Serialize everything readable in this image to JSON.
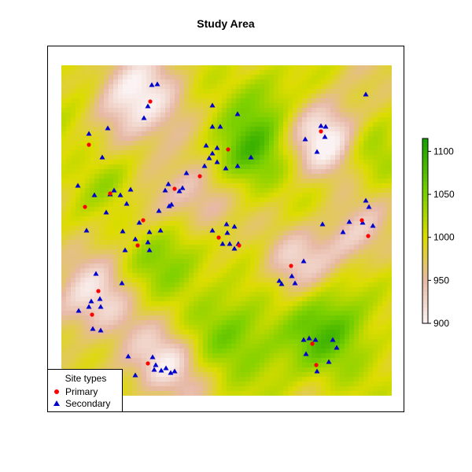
{
  "title": "Study Area",
  "colors": {
    "primary": "#ff0000",
    "secondary": "#0000cd",
    "frame": "#000000"
  },
  "colorscale": {
    "min": 900,
    "max": 1115,
    "ticks": [
      900,
      950,
      1000,
      1050,
      1100
    ],
    "stops": [
      {
        "value": 900,
        "color": "#fbf3f3"
      },
      {
        "value": 950,
        "color": "#e7b9a6"
      },
      {
        "value": 1000,
        "color": "#dcdc00"
      },
      {
        "value": 1050,
        "color": "#7cd000"
      },
      {
        "value": 1115,
        "color": "#14a000"
      }
    ]
  },
  "legend": {
    "title": "Site types",
    "items": [
      {
        "label": "Primary",
        "symbol": "circle",
        "color": "#ff0000"
      },
      {
        "label": "Secondary",
        "symbol": "triangle",
        "color": "#0000cd"
      }
    ]
  },
  "chart_data": {
    "type": "scatter",
    "title": "Study Area",
    "series": [
      {
        "name": "Primary",
        "points": [
          [
            191,
            129
          ],
          [
            113,
            184
          ],
          [
            290,
            190
          ],
          [
            408,
            167
          ],
          [
            254,
            224
          ],
          [
            222,
            240
          ],
          [
            108,
            263
          ],
          [
            140,
            246
          ],
          [
            182,
            280
          ],
          [
            278,
            302
          ],
          [
            175,
            312
          ],
          [
            304,
            312
          ],
          [
            460,
            280
          ],
          [
            468,
            300
          ],
          [
            370,
            338
          ],
          [
            125,
            370
          ],
          [
            117,
            400
          ],
          [
            188,
            462
          ],
          [
            397,
            437
          ],
          [
            402,
            464
          ]
        ]
      },
      {
        "name": "Secondary",
        "points": [
          [
            193,
            108
          ],
          [
            200,
            107
          ],
          [
            465,
            120
          ],
          [
            188,
            135
          ],
          [
            270,
            134
          ],
          [
            183,
            150
          ],
          [
            137,
            163
          ],
          [
            113,
            170
          ],
          [
            302,
            145
          ],
          [
            270,
            161
          ],
          [
            280,
            161
          ],
          [
            408,
            160
          ],
          [
            414,
            161
          ],
          [
            413,
            174
          ],
          [
            388,
            177
          ],
          [
            403,
            193
          ],
          [
            262,
            185
          ],
          [
            276,
            188
          ],
          [
            319,
            200
          ],
          [
            270,
            195
          ],
          [
            266,
            201
          ],
          [
            276,
            206
          ],
          [
            287,
            214
          ],
          [
            302,
            211
          ],
          [
            130,
            200
          ],
          [
            260,
            211
          ],
          [
            237,
            220
          ],
          [
            99,
            236
          ],
          [
            120,
            248
          ],
          [
            145,
            242
          ],
          [
            140,
            247
          ],
          [
            153,
            248
          ],
          [
            166,
            241
          ],
          [
            214,
            234
          ],
          [
            210,
            242
          ],
          [
            232,
            239
          ],
          [
            228,
            243
          ],
          [
            215,
            262
          ],
          [
            161,
            259
          ],
          [
            202,
            268
          ],
          [
            218,
            260
          ],
          [
            177,
            283
          ],
          [
            135,
            270
          ],
          [
            465,
            255
          ],
          [
            469,
            263
          ],
          [
            474,
            287
          ],
          [
            461,
            283
          ],
          [
            444,
            282
          ],
          [
            436,
            295
          ],
          [
            410,
            285
          ],
          [
            110,
            293
          ],
          [
            156,
            294
          ],
          [
            172,
            304
          ],
          [
            159,
            318
          ],
          [
            190,
            295
          ],
          [
            188,
            308
          ],
          [
            204,
            293
          ],
          [
            190,
            318
          ],
          [
            288,
            285
          ],
          [
            289,
            296
          ],
          [
            298,
            288
          ],
          [
            283,
            310
          ],
          [
            292,
            310
          ],
          [
            298,
            316
          ],
          [
            303,
            310
          ],
          [
            270,
            293
          ],
          [
            386,
            332
          ],
          [
            371,
            351
          ],
          [
            358,
            361
          ],
          [
            355,
            357
          ],
          [
            375,
            360
          ],
          [
            122,
            348
          ],
          [
            127,
            380
          ],
          [
            155,
            360
          ],
          [
            116,
            383
          ],
          [
            128,
            390
          ],
          [
            100,
            395
          ],
          [
            113,
            390
          ],
          [
            118,
            418
          ],
          [
            128,
            420
          ],
          [
            386,
            432
          ],
          [
            393,
            430
          ],
          [
            401,
            432
          ],
          [
            389,
            450
          ],
          [
            423,
            432
          ],
          [
            428,
            442
          ],
          [
            418,
            460
          ],
          [
            403,
            472
          ],
          [
            163,
            453
          ],
          [
            172,
            477
          ],
          [
            194,
            454
          ],
          [
            196,
            470
          ],
          [
            198,
            464
          ],
          [
            205,
            471
          ],
          [
            211,
            468
          ],
          [
            217,
            474
          ],
          [
            222,
            472
          ]
        ]
      }
    ]
  }
}
